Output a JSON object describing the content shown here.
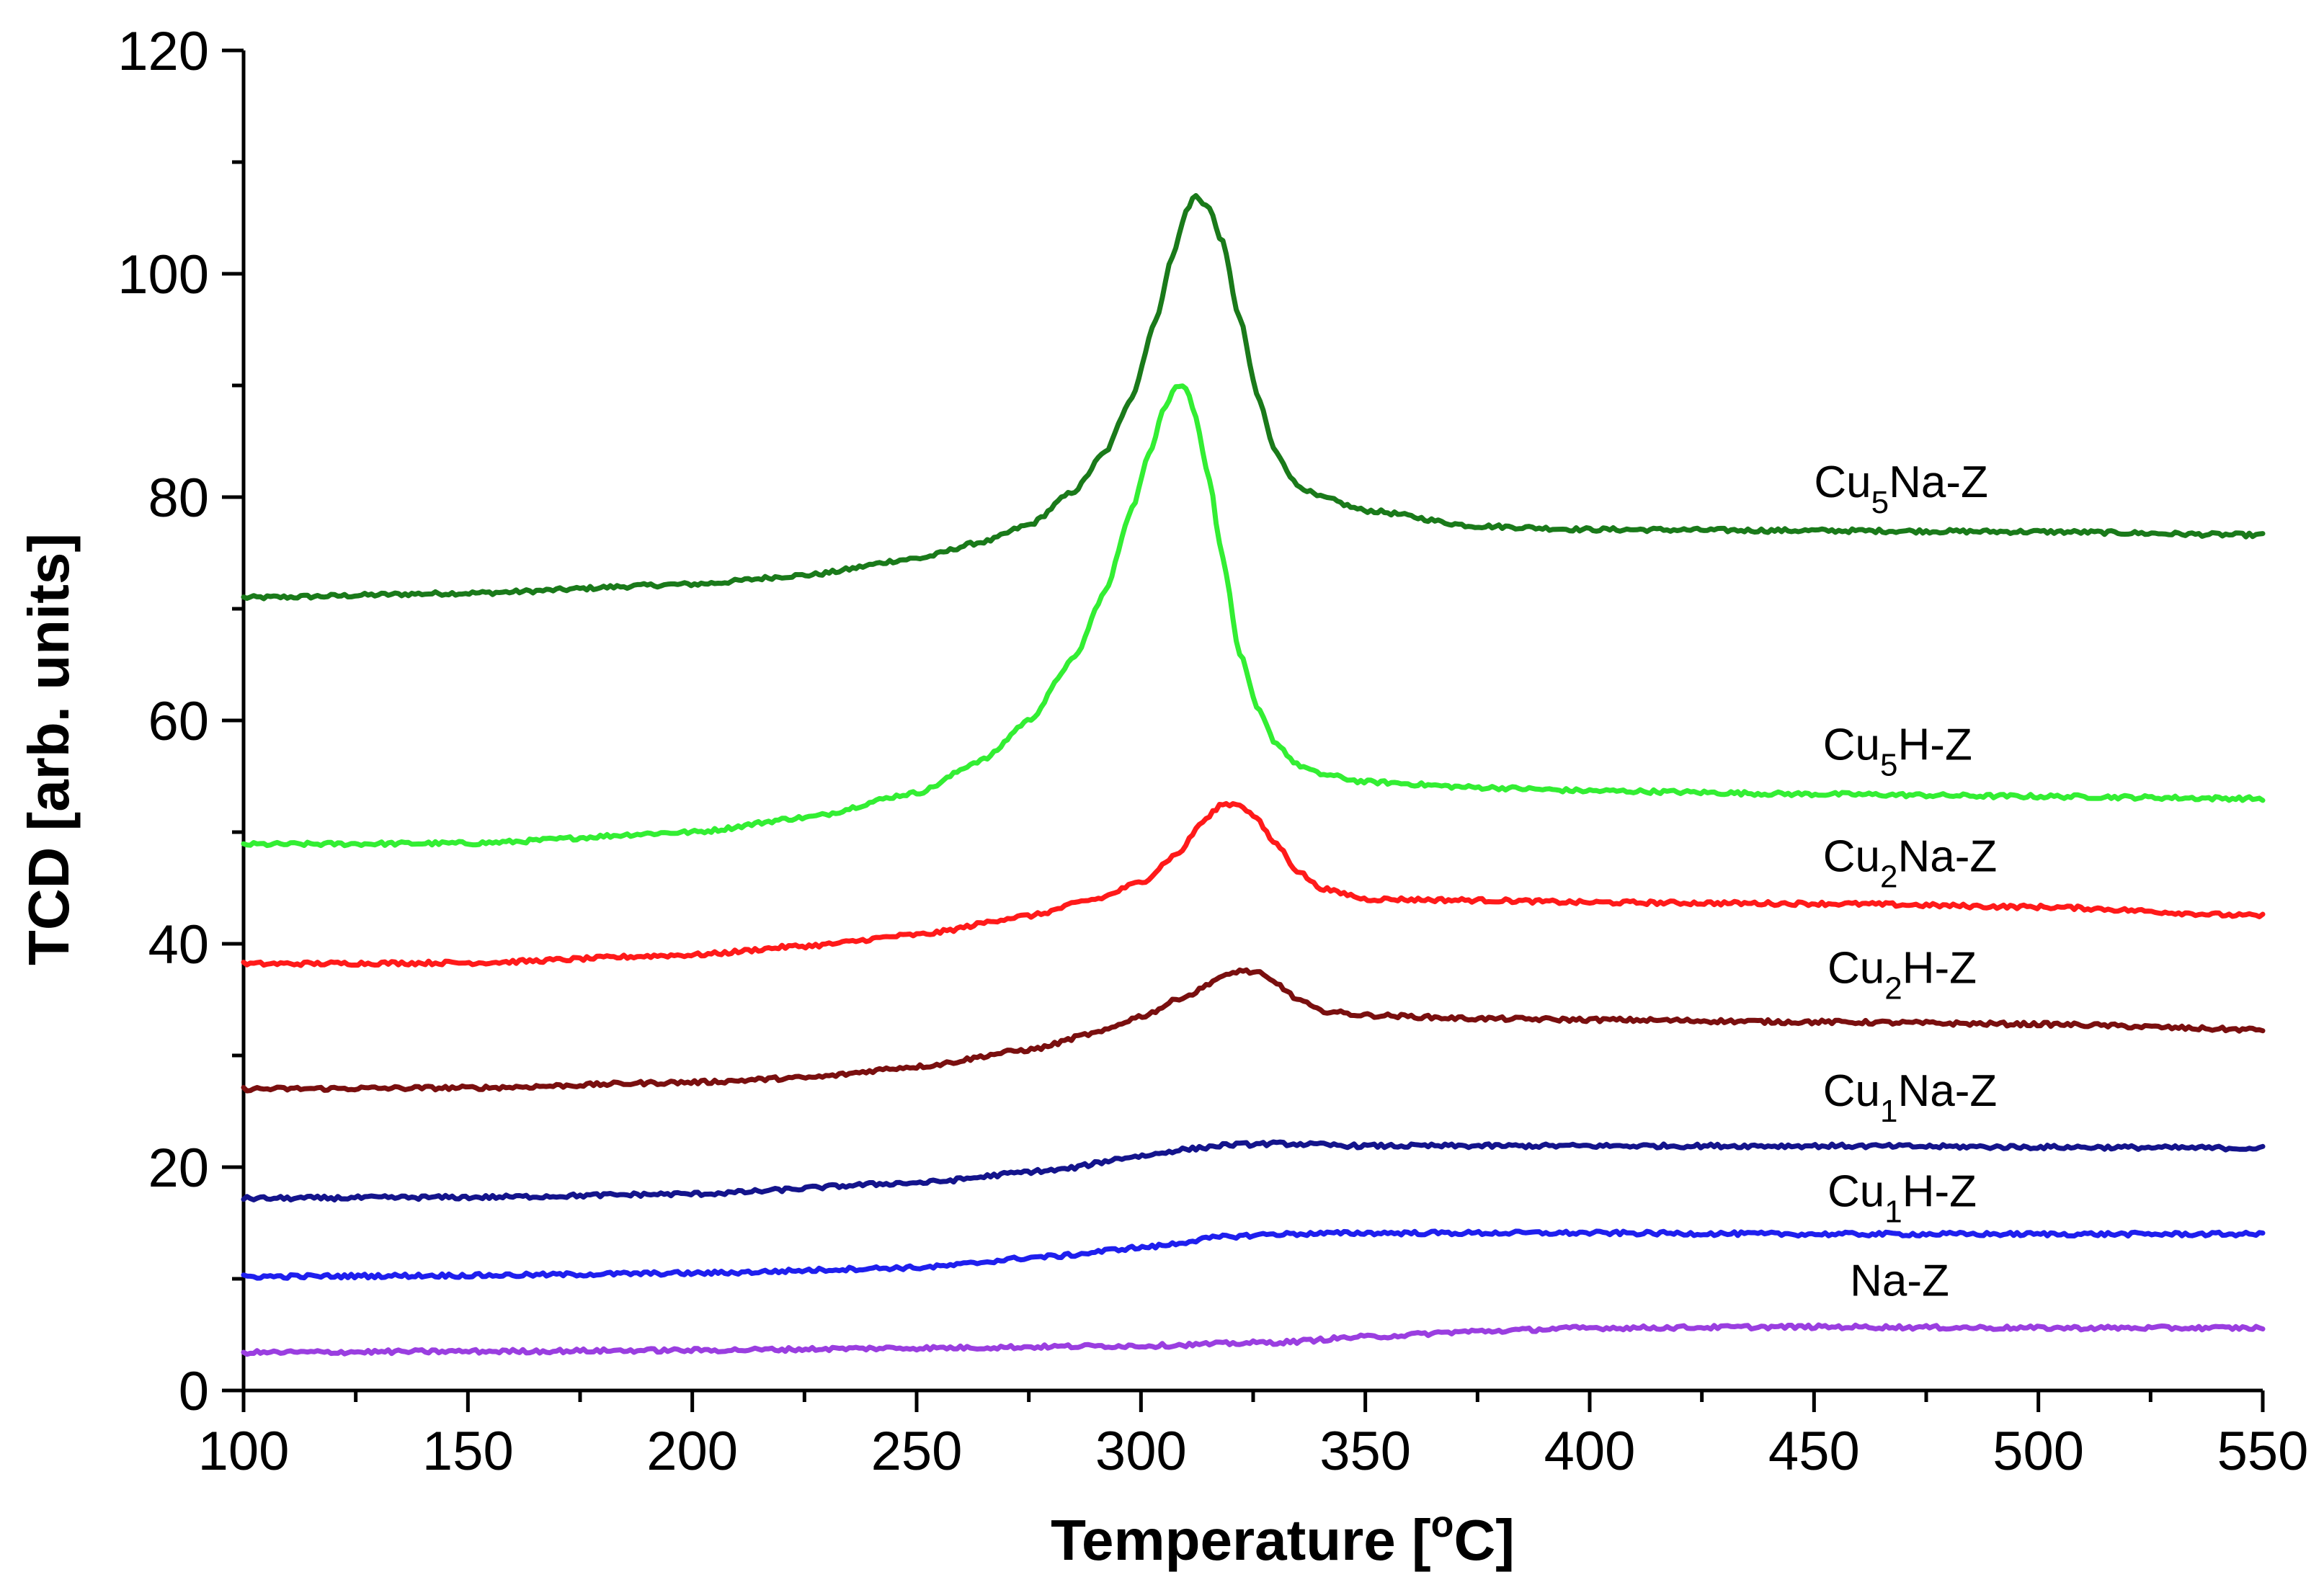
{
  "chart_data": {
    "type": "line",
    "title": "",
    "xlabel": {
      "main": "Temperature [",
      "sup": "o",
      "tail": "C]"
    },
    "ylabel": "TCD [arb. units]",
    "xlim": [
      100,
      550
    ],
    "ylim": [
      0,
      120
    ],
    "x_major_ticks": [
      100,
      150,
      200,
      250,
      300,
      350,
      400,
      450,
      500,
      550
    ],
    "x_minor_ticks": [
      125,
      175,
      225,
      275,
      325,
      375,
      425,
      475,
      525
    ],
    "y_major_ticks": [
      0,
      20,
      40,
      60,
      80,
      100,
      120
    ],
    "y_minor_ticks": [
      10,
      30,
      50,
      70,
      90,
      110
    ],
    "x_tick_labels": [
      "100",
      "150",
      "200",
      "250",
      "300",
      "350",
      "400",
      "450",
      "500",
      "550"
    ],
    "y_tick_labels": [
      "0",
      "20",
      "40",
      "60",
      "80",
      "100",
      "120"
    ],
    "grid": false,
    "legend": "inline labels at right",
    "series": [
      {
        "name": "Cu5Na-Z",
        "label": {
          "base": "Cu",
          "sub": "5",
          "rest": "Na-Z"
        },
        "color": "#1a7a1a",
        "label_pos": [
          450,
          80
        ],
        "x": [
          100,
          150,
          200,
          225,
          250,
          265,
          275,
          285,
          292,
          298,
          303,
          307,
          310,
          312,
          315,
          318,
          322,
          326,
          330,
          335,
          340,
          350,
          375,
          400,
          450,
          500,
          550
        ],
        "y": [
          71,
          71.4,
          72.2,
          73,
          74.5,
          76,
          77.5,
          80.5,
          84,
          89,
          95.5,
          101.5,
          105.5,
          107,
          106,
          103,
          96,
          89,
          84,
          81,
          80,
          78.8,
          77.4,
          77.1,
          77,
          76.9,
          76.6
        ]
      },
      {
        "name": "Cu5H-Z",
        "label": {
          "base": "Cu",
          "sub": "5",
          "rest": "H-Z"
        },
        "color": "#33ee33",
        "label_pos": [
          452,
          56.5
        ],
        "x": [
          100,
          150,
          200,
          225,
          250,
          265,
          275,
          285,
          292,
          298,
          302,
          305,
          308,
          310,
          312,
          315,
          318,
          322,
          326,
          330,
          335,
          340,
          350,
          375,
          400,
          450,
          500,
          550
        ],
        "y": [
          48.9,
          49,
          50,
          51.3,
          53.5,
          56.5,
          60,
          65.5,
          71.5,
          79,
          84,
          88,
          90,
          89.8,
          87.5,
          82,
          75,
          66,
          61,
          58,
          56,
          55.2,
          54.5,
          54,
          53.7,
          53.4,
          53.2,
          53
        ]
      },
      {
        "name": "Cu2Na-Z",
        "label": {
          "base": "Cu",
          "sub": "2",
          "rest": "Na-Z"
        },
        "color": "#ff1a1a",
        "label_pos": [
          452,
          46.5
        ],
        "x": [
          100,
          150,
          200,
          225,
          250,
          275,
          290,
          300,
          308,
          314,
          318,
          322,
          325,
          330,
          335,
          340,
          345,
          350,
          375,
          400,
          450,
          500,
          550
        ],
        "y": [
          38.2,
          38.3,
          39,
          39.8,
          40.8,
          42.5,
          44,
          45.5,
          48,
          51,
          52.5,
          52.5,
          51.5,
          49,
          46.5,
          45,
          44.5,
          44,
          43.9,
          43.7,
          43.6,
          43.3,
          42.5
        ]
      },
      {
        "name": "Cu2H-Z",
        "label": {
          "base": "Cu",
          "sub": "2",
          "rest": "H-Z"
        },
        "color": "#7a0f0f",
        "label_pos": [
          453,
          36.5
        ],
        "x": [
          100,
          150,
          200,
          225,
          250,
          275,
          290,
          300,
          310,
          318,
          322,
          326,
          330,
          335,
          340,
          350,
          375,
          400,
          450,
          500,
          550
        ],
        "y": [
          27,
          27.1,
          27.6,
          28,
          29,
          30.5,
          32,
          33.5,
          35.3,
          37,
          37.6,
          37.4,
          36.5,
          35,
          34,
          33.6,
          33.3,
          33.2,
          33,
          32.8,
          32.3
        ]
      },
      {
        "name": "Cu1Na-Z",
        "label": {
          "base": "Cu",
          "sub": "1",
          "rest": "Na-Z"
        },
        "color": "#14148c",
        "label_pos": [
          452,
          25.5
        ],
        "x": [
          100,
          150,
          200,
          250,
          280,
          300,
          310,
          320,
          330,
          350,
          400,
          450,
          500,
          550
        ],
        "y": [
          17.2,
          17.3,
          17.6,
          18.6,
          19.7,
          21,
          21.6,
          22,
          22.1,
          21.9,
          21.9,
          21.9,
          21.8,
          21.7
        ]
      },
      {
        "name": "Cu1H-Z",
        "label": {
          "base": "Cu",
          "sub": "1",
          "rest": "H-Z"
        },
        "color": "#1f1fee",
        "label_pos": [
          453,
          16.5
        ],
        "x": [
          100,
          150,
          200,
          250,
          280,
          300,
          320,
          330,
          350,
          400,
          450,
          500,
          550
        ],
        "y": [
          10.2,
          10.3,
          10.5,
          11,
          12,
          12.8,
          13.8,
          14,
          14.1,
          14.1,
          14,
          14,
          14
        ]
      },
      {
        "name": "Na-Z",
        "label": {
          "base": "Na-Z",
          "sub": "",
          "rest": ""
        },
        "color": "#9a3ee0",
        "label_pos": [
          458,
          8.5
        ],
        "x": [
          100,
          150,
          200,
          250,
          300,
          330,
          350,
          375,
          400,
          450,
          500,
          550
        ],
        "y": [
          3.4,
          3.5,
          3.6,
          3.8,
          4,
          4.3,
          4.8,
          5.3,
          5.6,
          5.7,
          5.6,
          5.6
        ]
      }
    ]
  }
}
